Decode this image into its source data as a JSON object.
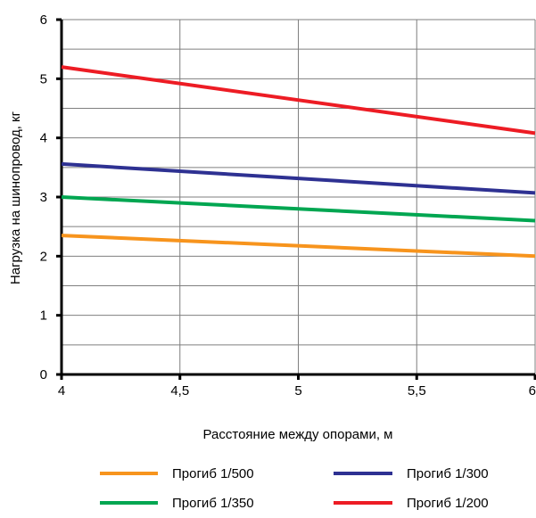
{
  "chart_data": {
    "type": "line",
    "title": "",
    "xlabel": "Расстояние между опорами, м",
    "ylabel": "Нагрузка на шинопровод,  кг",
    "xlim": [
      4,
      6
    ],
    "ylim": [
      0,
      6
    ],
    "x_ticks": [
      4,
      4.5,
      5,
      5.5,
      6
    ],
    "x_tick_labels": [
      "4",
      "4,5",
      "5",
      "5,5",
      "6"
    ],
    "y_ticks": [
      0,
      1,
      2,
      3,
      4,
      5,
      6
    ],
    "y_tick_labels": [
      "0",
      "1",
      "2",
      "3",
      "4",
      "5",
      "6"
    ],
    "grid": true,
    "legend_position": "bottom",
    "series": [
      {
        "name": "Прогиб 1/500",
        "color": "#f7941d",
        "x": [
          4,
          6
        ],
        "values": [
          2.35,
          2.0
        ]
      },
      {
        "name": "Прогиб 1/300",
        "color": "#2e3192",
        "x": [
          4,
          6
        ],
        "values": [
          3.56,
          3.07
        ]
      },
      {
        "name": "Прогиб 1/350",
        "color": "#00a651",
        "x": [
          4,
          6
        ],
        "values": [
          3.0,
          2.6
        ]
      },
      {
        "name": "Прогиб 1/200",
        "color": "#ed1c24",
        "x": [
          4,
          6
        ],
        "values": [
          5.2,
          4.08
        ]
      }
    ]
  }
}
